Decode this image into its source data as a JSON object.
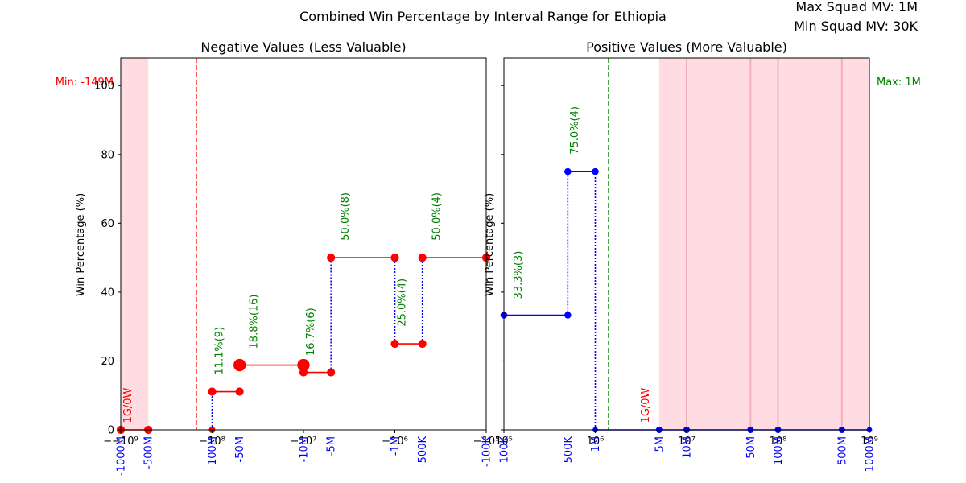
{
  "figure": {
    "suptitle": "Combined Win Percentage by Interval Range for Ethiopia",
    "max_squad": "Max Squad MV: 1M",
    "min_squad": "Min Squad MV: 30K"
  },
  "chart_data": [
    {
      "type": "line",
      "panel": "left",
      "title": "Negative Values (Less Valuable)",
      "ylabel": "Win Percentage (%)",
      "xscale": "symlog-negative",
      "xlim": [
        -1000000000,
        -100000
      ],
      "ylim": [
        0,
        108
      ],
      "yticks": [
        0,
        20,
        40,
        60,
        80,
        100
      ],
      "x_tick_labels": [
        {
          "value": -1000000000,
          "label": "−−10⁹"
        },
        {
          "value": -100000000,
          "label": "−10⁸"
        },
        {
          "value": -10000000,
          "label": "−10⁷"
        },
        {
          "value": -1000000,
          "label": "−10⁶"
        },
        {
          "value": -100000,
          "label": "−10⁵"
        }
      ],
      "sub_labels": [
        {
          "value": -1000000000,
          "label": "-1000M"
        },
        {
          "value": -500000000,
          "label": "-500M"
        },
        {
          "value": -100000000,
          "label": "-100M"
        },
        {
          "value": -50000000,
          "label": "-50M"
        },
        {
          "value": -10000000,
          "label": "-10M"
        },
        {
          "value": -5000000,
          "label": "-5M"
        },
        {
          "value": -1000000,
          "label": "-1M"
        },
        {
          "value": -500000,
          "label": "-500K"
        },
        {
          "value": -100000,
          "label": "-100K"
        }
      ],
      "line_color": "#ff0000",
      "segments": [
        {
          "x0": -1000000000,
          "x1": -500000000,
          "y": 0,
          "marker": 6,
          "label": "1G/0W",
          "label_color": "#ff0000",
          "label_y": 2
        },
        {
          "x0": -100000000,
          "x1": -50000000,
          "y": 11.1,
          "marker": 6,
          "label": "11.1%(9)",
          "label_color": "#008000",
          "label_y": 16
        },
        {
          "x0": -50000000,
          "x1": -10000000,
          "y": 18.8,
          "marker": 9,
          "label": "18.8%(16)",
          "label_color": "#008000",
          "label_y": 23.5
        },
        {
          "x0": -10000000,
          "x1": -5000000,
          "y": 16.7,
          "marker": 6,
          "label": "16.7%(6)",
          "label_color": "#008000",
          "label_y": 21.5
        },
        {
          "x0": -5000000,
          "x1": -1000000,
          "y": 50.0,
          "marker": 6,
          "label": "50.0%(8)",
          "label_color": "#008000",
          "label_y": 55
        },
        {
          "x0": -1000000,
          "x1": -500000,
          "y": 25.0,
          "marker": 6,
          "label": "25.0%(4)",
          "label_color": "#008000",
          "label_y": 30
        },
        {
          "x0": -500000,
          "x1": -100000,
          "y": 50.0,
          "marker": 6,
          "label": "50.0%(4)",
          "label_color": "#008000",
          "label_y": 55
        }
      ],
      "vertical_links": [
        {
          "x": -100000000,
          "y0": 0,
          "y1": 11.1
        },
        {
          "x": -5000000,
          "y0": 16.7,
          "y1": 50.0
        },
        {
          "x": -1000000,
          "y0": 25.0,
          "y1": 50.0
        },
        {
          "x": -500000,
          "y0": 25.0,
          "y1": 50.0
        }
      ],
      "extra_points": [
        {
          "x": -100000000,
          "y": 0
        }
      ],
      "reference_line": {
        "x": -149000000,
        "color": "#ff0000",
        "label": "Min: -149M"
      },
      "shaded": [
        {
          "x0": -1000000000,
          "x1": -500000000,
          "color": "#ffc0cb"
        }
      ]
    },
    {
      "type": "line",
      "panel": "right",
      "title": "Positive Values (More Valuable)",
      "ylabel": "Win Percentage (%)",
      "xscale": "log",
      "xlim": [
        100000,
        1000000000
      ],
      "ylim": [
        0,
        108
      ],
      "x_tick_labels": [
        {
          "value": 100000,
          "label": "10⁵"
        },
        {
          "value": 1000000,
          "label": "10⁶"
        },
        {
          "value": 10000000,
          "label": "10⁷"
        },
        {
          "value": 100000000,
          "label": "10⁸"
        },
        {
          "value": 1000000000,
          "label": "10⁹"
        }
      ],
      "sub_labels": [
        {
          "value": 100000,
          "label": "100K"
        },
        {
          "value": 500000,
          "label": "500K"
        },
        {
          "value": 1000000,
          "label": "1M"
        },
        {
          "value": 5000000,
          "label": "5M"
        },
        {
          "value": 10000000,
          "label": "10M"
        },
        {
          "value": 50000000,
          "label": "50M"
        },
        {
          "value": 100000000,
          "label": "100M"
        },
        {
          "value": 500000000,
          "label": "500M"
        },
        {
          "value": 1000000000,
          "label": "1000M"
        }
      ],
      "line_color": "#0000ff",
      "segments": [
        {
          "x0": 100000,
          "x1": 500000,
          "y": 33.3,
          "marker": 5,
          "label": "33.3%(3)",
          "label_color": "#008000",
          "label_y": 38
        },
        {
          "x0": 500000,
          "x1": 1000000,
          "y": 75.0,
          "marker": 5,
          "label": "75.0%(4)",
          "label_color": "#008000",
          "label_y": 80
        },
        {
          "x0": 1000000,
          "x1": 1000000000,
          "y": 0,
          "marker": 4,
          "label": "",
          "label_color": "#008000",
          "label_y": 0
        }
      ],
      "vertical_links": [
        {
          "x": 500000,
          "y0": 33.3,
          "y1": 75.0
        },
        {
          "x": 1000000,
          "y0": 0,
          "y1": 75.0
        }
      ],
      "extra_points": [
        {
          "x": 5000000,
          "y": 0
        },
        {
          "x": 10000000,
          "y": 0
        },
        {
          "x": 50000000,
          "y": 0
        },
        {
          "x": 100000000,
          "y": 0
        },
        {
          "x": 500000000,
          "y": 0
        }
      ],
      "text_labels": [
        {
          "x": 3500000,
          "y": 2,
          "label": "1G/0W",
          "color": "#ff0000"
        }
      ],
      "reference_line": {
        "x": 1400000,
        "color": "#008000",
        "label": "Max: 1M"
      },
      "shaded": [
        {
          "x0": 5000000,
          "x1": 1000000000,
          "color": "#ffc0cb"
        }
      ],
      "shade_dividers": [
        10000000,
        50000000,
        100000000,
        500000000
      ]
    }
  ]
}
